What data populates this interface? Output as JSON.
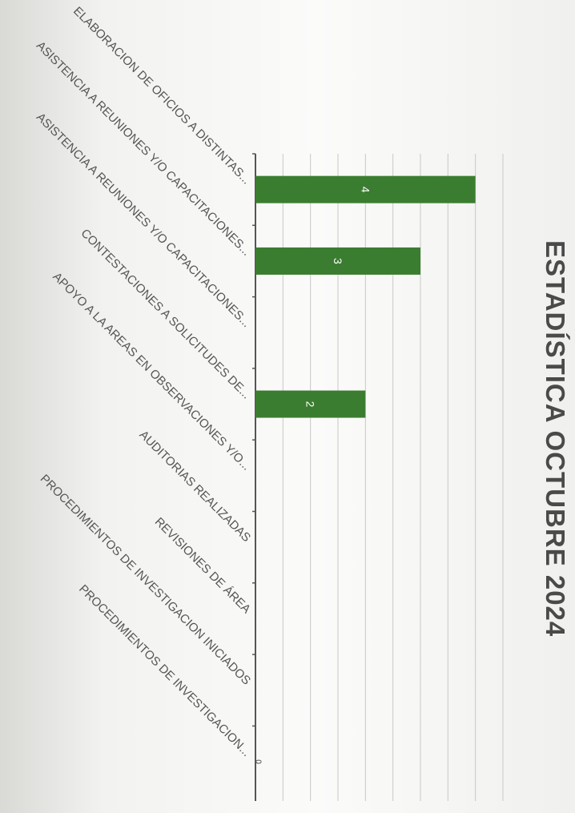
{
  "chart_data": {
    "type": "bar",
    "orientation": "rotated-90",
    "title": "ESTADÍSTICA OCTUBRE 2024",
    "categories": [
      "ELABORACION DE OFICIOS A DISTINTAS...",
      "ASISTENCIA A REUNIONES Y/O CAPACITACIONES...",
      "ASISTENCIA A REUNIONES Y/O CAPACITACIONES...",
      "CONTESTACIONES A SOLICITUDES DE...",
      "APOYO A LA AREAS EN OBSERVACIONES Y/O...",
      "AUDITORIAS REALIZADAS",
      "REVISIONES DE ÁREA",
      "PROCEDIMIENTOS DE INVESTIGACION INICIADOS",
      "PROCEDIMIENTOS DE INVESTIGACION..."
    ],
    "values": [
      4,
      3,
      0,
      2,
      0,
      0,
      0,
      0,
      0
    ],
    "data_labels": [
      "4",
      "3",
      "",
      "2",
      "",
      "",
      "",
      "",
      "0"
    ],
    "ylim": [
      0,
      4.5
    ],
    "grid": true,
    "legend": "none",
    "bar_color": "#3b7d30",
    "gridline_color": "#c8c8c8"
  }
}
